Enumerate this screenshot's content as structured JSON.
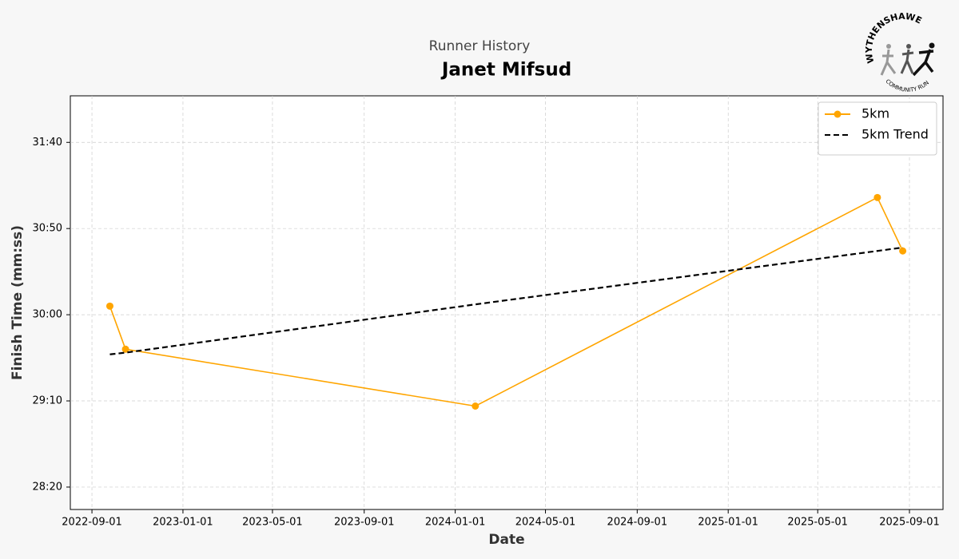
{
  "chart_data": {
    "type": "line",
    "supertitle": "Runner History",
    "title": "Janet Mifsud",
    "xlabel": "Date",
    "ylabel": "Finish Time (mm:ss)",
    "logo": {
      "top": "WYTHENSHAWE",
      "bottom": "COMMUNITY RUN"
    },
    "x": [
      "2022-09-25",
      "2022-10-16",
      "2024-01-28",
      "2025-07-20",
      "2025-08-23"
    ],
    "series": [
      {
        "name": "5km",
        "color": "#ffa500",
        "style": "solid",
        "marker": true,
        "values": [
          1805,
          1780,
          1747,
          1868,
          1837
        ]
      },
      {
        "name": "5km Trend",
        "color": "#000000",
        "style": "dashed",
        "marker": false,
        "values": [
          1777,
          1778,
          1806,
          1837,
          1839
        ]
      }
    ],
    "xlim": [
      "2022-08-03",
      "2025-10-16"
    ],
    "xticks": [
      "2022-09-01",
      "2023-01-01",
      "2023-05-01",
      "2023-09-01",
      "2024-01-01",
      "2024-05-01",
      "2024-09-01",
      "2025-01-01",
      "2025-05-01",
      "2025-09-01"
    ],
    "ylim": [
      1687,
      1927
    ],
    "yticks": [
      {
        "value": 1700,
        "label": "28:20"
      },
      {
        "value": 1750,
        "label": "29:10"
      },
      {
        "value": 1800,
        "label": "30:00"
      },
      {
        "value": 1850,
        "label": "30:50"
      },
      {
        "value": 1900,
        "label": "31:40"
      }
    ],
    "grid": true,
    "legend": "upper right"
  }
}
